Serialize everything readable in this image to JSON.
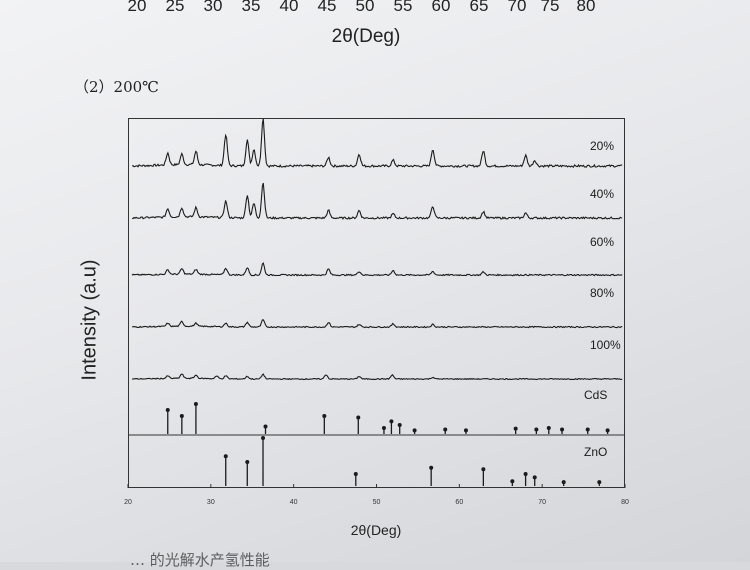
{
  "previous_figure": {
    "tick_labels": [
      "20",
      "25",
      "30",
      "35",
      "40",
      "45",
      "50",
      "55",
      "60",
      "65",
      "70",
      "75",
      "80"
    ],
    "xlabel": "2θ(Deg)"
  },
  "section_label": "（2）200℃",
  "chart_data": {
    "type": "line",
    "xlabel": "2θ(Deg)",
    "ylabel": "Intensity (a.u)",
    "xlim": [
      20,
      80
    ],
    "x_ticks": [
      20,
      30,
      40,
      50,
      60,
      70,
      80
    ],
    "x_tick_labels": [
      "20",
      "30",
      "40",
      "50",
      "60",
      "70",
      "80"
    ],
    "grid": false,
    "series": [
      {
        "name": "20%",
        "kind": "pattern",
        "peaks": [
          [
            24.8,
            0.25
          ],
          [
            26.5,
            0.22
          ],
          [
            28.2,
            0.28
          ],
          [
            31.8,
            0.65
          ],
          [
            34.4,
            0.55
          ],
          [
            35.2,
            0.35
          ],
          [
            36.3,
            1.0
          ],
          [
            44.2,
            0.18
          ],
          [
            47.9,
            0.25
          ],
          [
            52.0,
            0.12
          ],
          [
            56.8,
            0.35
          ],
          [
            62.9,
            0.32
          ],
          [
            68.0,
            0.22
          ],
          [
            69.1,
            0.12
          ]
        ]
      },
      {
        "name": "40%",
        "kind": "pattern",
        "peaks": [
          [
            24.8,
            0.2
          ],
          [
            26.5,
            0.22
          ],
          [
            28.2,
            0.22
          ],
          [
            31.8,
            0.4
          ],
          [
            34.4,
            0.55
          ],
          [
            35.2,
            0.35
          ],
          [
            36.3,
            0.85
          ],
          [
            44.2,
            0.18
          ],
          [
            47.9,
            0.18
          ],
          [
            52.0,
            0.1
          ],
          [
            56.8,
            0.28
          ],
          [
            62.9,
            0.15
          ],
          [
            68.0,
            0.12
          ]
        ]
      },
      {
        "name": "60%",
        "kind": "pattern",
        "peaks": [
          [
            24.8,
            0.15
          ],
          [
            26.5,
            0.18
          ],
          [
            28.2,
            0.16
          ],
          [
            31.8,
            0.22
          ],
          [
            34.4,
            0.25
          ],
          [
            36.3,
            0.4
          ],
          [
            44.2,
            0.2
          ],
          [
            47.9,
            0.12
          ],
          [
            52.0,
            0.15
          ],
          [
            56.8,
            0.12
          ],
          [
            62.9,
            0.1
          ]
        ]
      },
      {
        "name": "80%",
        "kind": "pattern",
        "peaks": [
          [
            24.8,
            0.12
          ],
          [
            26.5,
            0.18
          ],
          [
            28.2,
            0.12
          ],
          [
            31.8,
            0.14
          ],
          [
            34.4,
            0.18
          ],
          [
            36.3,
            0.28
          ],
          [
            44.2,
            0.18
          ],
          [
            47.9,
            0.1
          ],
          [
            52.0,
            0.12
          ],
          [
            56.8,
            0.1
          ]
        ]
      },
      {
        "name": "100%",
        "kind": "pattern",
        "peaks": [
          [
            24.8,
            0.12
          ],
          [
            26.5,
            0.2
          ],
          [
            28.2,
            0.15
          ],
          [
            30.7,
            0.12
          ],
          [
            31.8,
            0.14
          ],
          [
            34.4,
            0.12
          ],
          [
            36.3,
            0.22
          ],
          [
            43.9,
            0.2
          ],
          [
            47.9,
            0.12
          ],
          [
            51.9,
            0.18
          ],
          [
            56.8,
            0.08
          ]
        ]
      },
      {
        "name": "CdS",
        "kind": "reference",
        "sticks": [
          [
            24.8,
            0.8
          ],
          [
            26.5,
            0.6
          ],
          [
            28.2,
            1.0
          ],
          [
            36.6,
            0.25
          ],
          [
            43.7,
            0.6
          ],
          [
            47.8,
            0.55
          ],
          [
            50.9,
            0.2
          ],
          [
            51.8,
            0.42
          ],
          [
            52.8,
            0.3
          ],
          [
            54.6,
            0.12
          ],
          [
            58.3,
            0.15
          ],
          [
            60.8,
            0.12
          ],
          [
            66.8,
            0.18
          ],
          [
            69.3,
            0.15
          ],
          [
            70.8,
            0.2
          ],
          [
            72.4,
            0.15
          ],
          [
            75.5,
            0.15
          ],
          [
            77.9,
            0.12
          ]
        ]
      },
      {
        "name": "ZnO",
        "kind": "reference",
        "sticks": [
          [
            31.8,
            0.62
          ],
          [
            34.4,
            0.5
          ],
          [
            36.3,
            1.0
          ],
          [
            47.5,
            0.25
          ],
          [
            56.6,
            0.38
          ],
          [
            62.9,
            0.35
          ],
          [
            66.4,
            0.1
          ],
          [
            68.0,
            0.25
          ],
          [
            69.1,
            0.18
          ],
          [
            72.6,
            0.08
          ],
          [
            76.9,
            0.08
          ]
        ]
      }
    ]
  },
  "bottom_caption": "… 的光解水产氢性能"
}
